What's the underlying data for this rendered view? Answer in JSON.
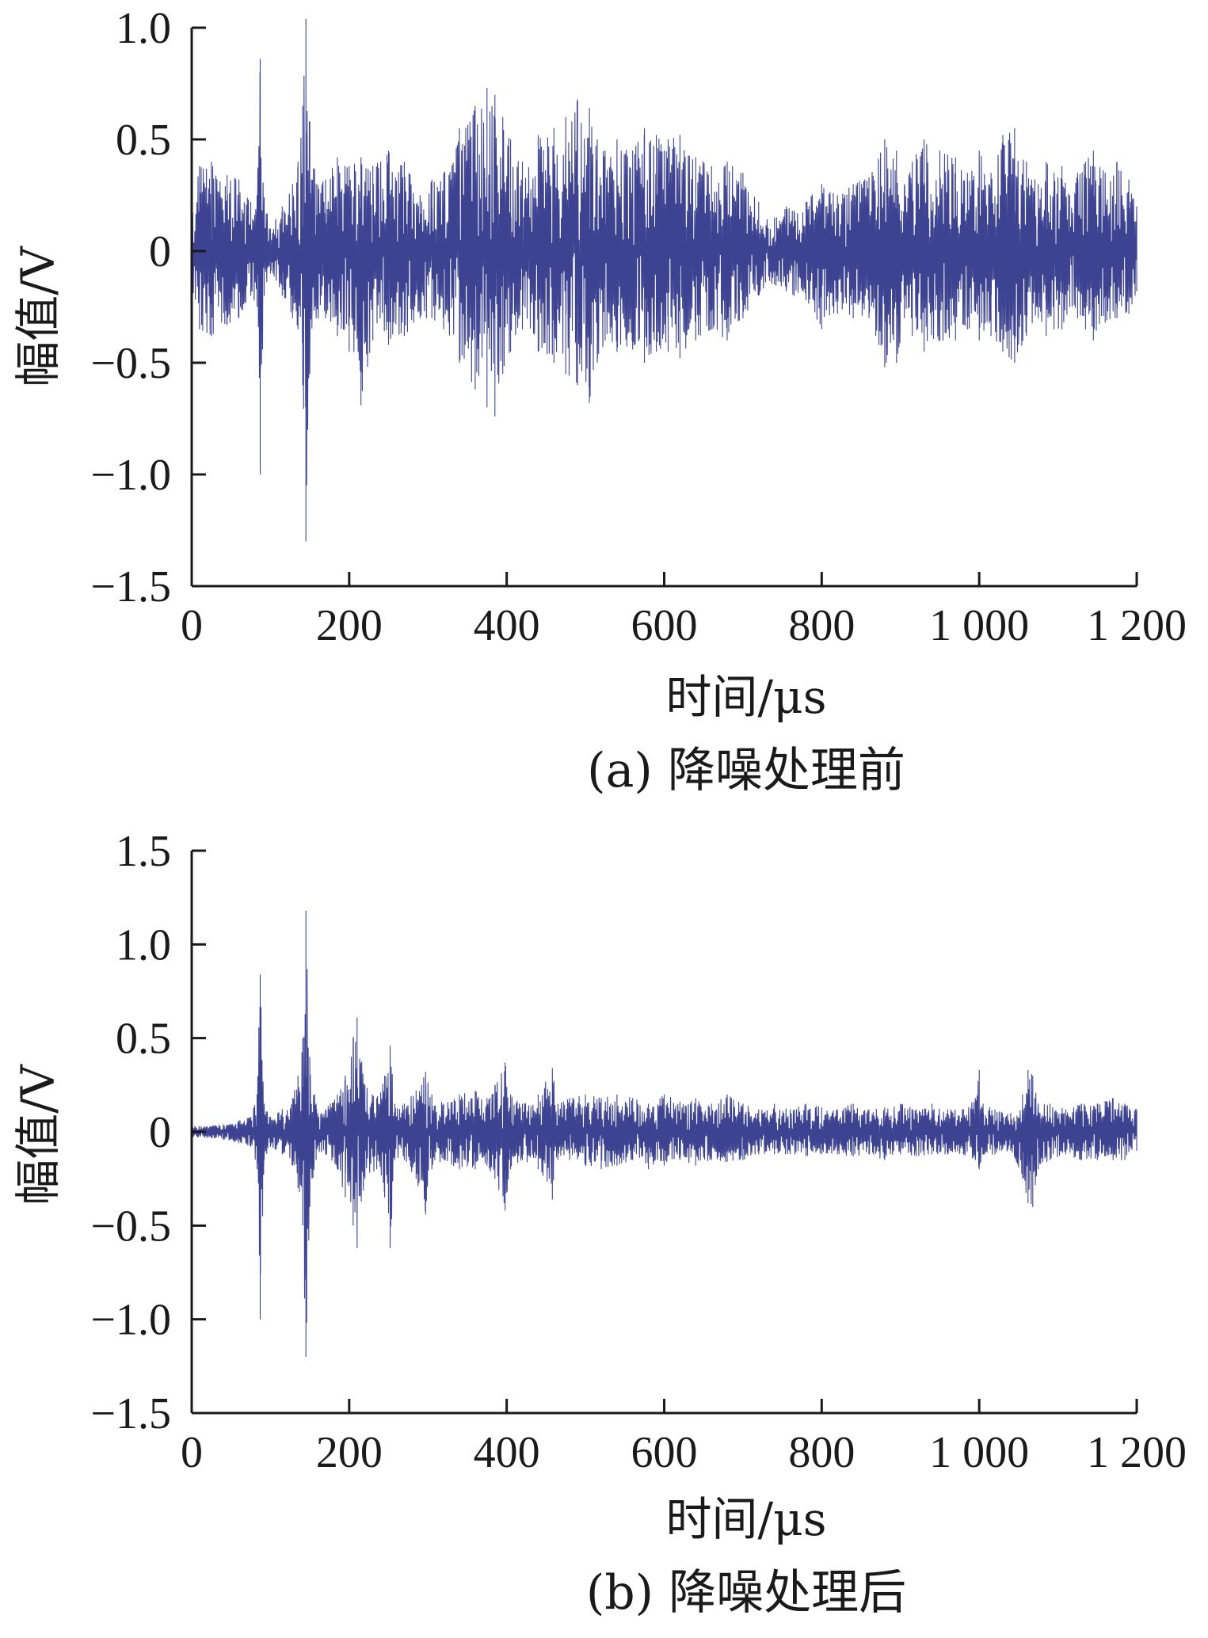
{
  "figure": {
    "trace_color": "#3d4391",
    "axis_color": "#1a1a1a"
  },
  "chart_data": [
    {
      "type": "line",
      "caption": "(a) 降噪处理前",
      "xlabel": "时间/μs",
      "ylabel": "幅值/V",
      "xlim": [
        0,
        1200
      ],
      "ylim": [
        -1.5,
        1.0
      ],
      "x_ticks": [
        0,
        200,
        400,
        600,
        800,
        1000,
        1200
      ],
      "x_tick_labels": [
        "0",
        "200",
        "400",
        "600",
        "800",
        "1 000",
        "1 200"
      ],
      "y_ticks": [
        1.0,
        0.5,
        0,
        -0.5,
        -1.0,
        -1.5
      ],
      "y_tick_labels": [
        "1.0",
        "0.5",
        "0",
        "−0.5",
        "−1.0",
        "−1.5"
      ],
      "grid": false,
      "legend": "none",
      "series": [
        {
          "envelope_x": [
            0,
            10,
            25,
            45,
            60,
            75,
            83,
            87,
            92,
            100,
            115,
            128,
            135,
            141,
            145,
            150,
            158,
            170,
            185,
            200,
            215,
            230,
            250,
            270,
            290,
            305,
            320,
            340,
            360,
            375,
            385,
            395,
            405,
            420,
            440,
            460,
            475,
            490,
            505,
            515,
            525,
            540,
            560,
            575,
            590,
            605,
            620,
            640,
            660,
            680,
            700,
            720,
            740,
            755,
            765,
            780,
            800,
            820,
            840,
            860,
            880,
            895,
            905,
            915,
            930,
            950,
            970,
            985,
            1000,
            1015,
            1030,
            1045,
            1060,
            1075,
            1085,
            1095,
            1105,
            1115,
            1125,
            1135,
            1145,
            1160,
            1175,
            1190,
            1200
          ],
          "envelope_max": [
            0.15,
            0.38,
            0.4,
            0.34,
            0.32,
            0.22,
            0.25,
            0.86,
            0.24,
            0.1,
            0.2,
            0.3,
            0.4,
            0.65,
            1.04,
            0.58,
            0.3,
            0.32,
            0.42,
            0.38,
            0.42,
            0.38,
            0.45,
            0.4,
            0.25,
            0.32,
            0.35,
            0.55,
            0.65,
            0.73,
            0.7,
            0.6,
            0.5,
            0.4,
            0.52,
            0.55,
            0.6,
            0.68,
            0.64,
            0.5,
            0.45,
            0.5,
            0.45,
            0.55,
            0.52,
            0.5,
            0.52,
            0.42,
            0.38,
            0.4,
            0.35,
            0.22,
            0.15,
            0.2,
            0.18,
            0.22,
            0.3,
            0.25,
            0.3,
            0.33,
            0.5,
            0.45,
            0.3,
            0.4,
            0.5,
            0.45,
            0.42,
            0.35,
            0.45,
            0.35,
            0.52,
            0.55,
            0.4,
            0.3,
            0.4,
            0.35,
            0.38,
            0.25,
            0.35,
            0.4,
            0.45,
            0.35,
            0.4,
            0.32,
            0.2
          ],
          "envelope_min": [
            -0.15,
            -0.35,
            -0.38,
            -0.33,
            -0.3,
            -0.2,
            -0.25,
            -1.0,
            -0.2,
            -0.1,
            -0.2,
            -0.3,
            -0.35,
            -0.6,
            -1.3,
            -0.55,
            -0.3,
            -0.3,
            -0.38,
            -0.45,
            -0.69,
            -0.4,
            -0.42,
            -0.38,
            -0.3,
            -0.3,
            -0.35,
            -0.5,
            -0.62,
            -0.7,
            -0.74,
            -0.55,
            -0.45,
            -0.35,
            -0.45,
            -0.5,
            -0.55,
            -0.6,
            -0.68,
            -0.5,
            -0.4,
            -0.45,
            -0.44,
            -0.5,
            -0.45,
            -0.45,
            -0.48,
            -0.4,
            -0.35,
            -0.4,
            -0.3,
            -0.2,
            -0.15,
            -0.18,
            -0.2,
            -0.22,
            -0.35,
            -0.28,
            -0.3,
            -0.3,
            -0.52,
            -0.5,
            -0.3,
            -0.38,
            -0.45,
            -0.4,
            -0.4,
            -0.35,
            -0.4,
            -0.38,
            -0.45,
            -0.5,
            -0.38,
            -0.3,
            -0.38,
            -0.35,
            -0.35,
            -0.25,
            -0.3,
            -0.35,
            -0.4,
            -0.32,
            -0.3,
            -0.28,
            -0.18
          ]
        }
      ]
    },
    {
      "type": "line",
      "caption": "(b) 降噪处理后",
      "xlabel": "时间/μs",
      "ylabel": "幅值/V",
      "xlim": [
        0,
        1200
      ],
      "ylim": [
        -1.5,
        1.5
      ],
      "x_ticks": [
        0,
        200,
        400,
        600,
        800,
        1000,
        1200
      ],
      "x_tick_labels": [
        "0",
        "200",
        "400",
        "600",
        "800",
        "1 000",
        "1 200"
      ],
      "y_ticks": [
        1.5,
        1.0,
        0.5,
        0,
        -0.5,
        -1.0,
        -1.5
      ],
      "y_tick_labels": [
        "1.5",
        "1.0",
        "0.5",
        "0",
        "−0.5",
        "−1.0",
        "−1.5"
      ],
      "grid": false,
      "legend": "none",
      "series": [
        {
          "envelope_x": [
            0,
            20,
            40,
            60,
            75,
            83,
            87,
            92,
            100,
            115,
            128,
            135,
            141,
            145,
            150,
            158,
            170,
            185,
            195,
            205,
            210,
            220,
            235,
            245,
            252,
            258,
            270,
            285,
            297,
            305,
            320,
            340,
            360,
            375,
            385,
            398,
            405,
            420,
            440,
            458,
            465,
            480,
            500,
            520,
            540,
            560,
            580,
            600,
            620,
            640,
            660,
            680,
            700,
            720,
            740,
            760,
            780,
            800,
            820,
            840,
            860,
            880,
            900,
            920,
            940,
            960,
            980,
            995,
            1000,
            1005,
            1020,
            1040,
            1055,
            1062,
            1068,
            1075,
            1090,
            1110,
            1130,
            1150,
            1170,
            1185,
            1200
          ],
          "envelope_max": [
            0.03,
            0.03,
            0.04,
            0.06,
            0.08,
            0.2,
            0.84,
            0.15,
            0.08,
            0.12,
            0.18,
            0.3,
            0.5,
            1.18,
            0.4,
            0.15,
            0.12,
            0.2,
            0.3,
            0.5,
            0.61,
            0.25,
            0.18,
            0.3,
            0.46,
            0.15,
            0.15,
            0.22,
            0.32,
            0.2,
            0.15,
            0.2,
            0.22,
            0.18,
            0.25,
            0.37,
            0.2,
            0.15,
            0.2,
            0.34,
            0.15,
            0.18,
            0.2,
            0.18,
            0.2,
            0.18,
            0.15,
            0.2,
            0.16,
            0.18,
            0.15,
            0.2,
            0.15,
            0.12,
            0.15,
            0.12,
            0.15,
            0.13,
            0.12,
            0.15,
            0.12,
            0.13,
            0.15,
            0.12,
            0.15,
            0.12,
            0.12,
            0.18,
            0.33,
            0.15,
            0.12,
            0.1,
            0.2,
            0.33,
            0.3,
            0.15,
            0.15,
            0.12,
            0.15,
            0.15,
            0.18,
            0.15,
            0.12
          ],
          "envelope_min": [
            -0.03,
            -0.03,
            -0.04,
            -0.06,
            -0.08,
            -0.2,
            -1.0,
            -0.15,
            -0.08,
            -0.12,
            -0.18,
            -0.3,
            -0.5,
            -1.2,
            -0.4,
            -0.15,
            -0.12,
            -0.2,
            -0.35,
            -0.5,
            -0.62,
            -0.25,
            -0.2,
            -0.35,
            -0.62,
            -0.15,
            -0.15,
            -0.25,
            -0.44,
            -0.2,
            -0.15,
            -0.2,
            -0.2,
            -0.18,
            -0.25,
            -0.42,
            -0.2,
            -0.15,
            -0.2,
            -0.36,
            -0.15,
            -0.15,
            -0.18,
            -0.2,
            -0.18,
            -0.15,
            -0.2,
            -0.18,
            -0.15,
            -0.18,
            -0.15,
            -0.16,
            -0.15,
            -0.12,
            -0.12,
            -0.12,
            -0.13,
            -0.12,
            -0.12,
            -0.13,
            -0.12,
            -0.15,
            -0.12,
            -0.13,
            -0.12,
            -0.12,
            -0.12,
            -0.15,
            -0.2,
            -0.12,
            -0.12,
            -0.1,
            -0.25,
            -0.38,
            -0.4,
            -0.2,
            -0.15,
            -0.12,
            -0.15,
            -0.15,
            -0.15,
            -0.15,
            -0.1
          ]
        }
      ]
    }
  ]
}
